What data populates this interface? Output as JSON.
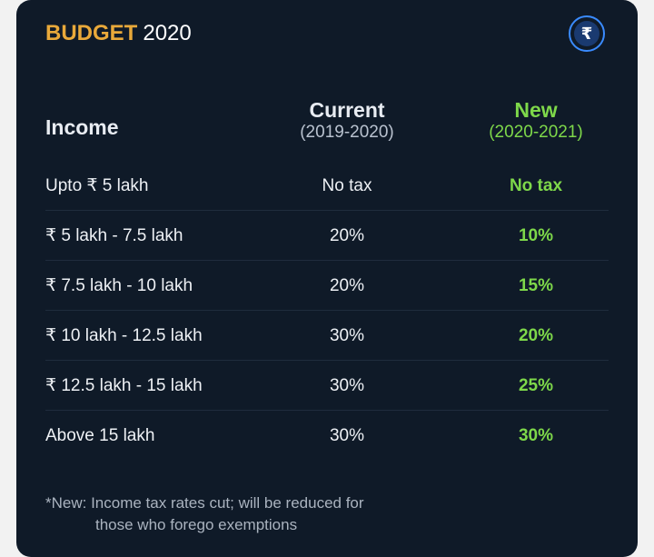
{
  "card": {
    "title_accent": "BUDGET",
    "title_year": "2020",
    "icon": "rupee-icon",
    "icon_glyph": "₹"
  },
  "table": {
    "headers": {
      "income": "Income",
      "current_title": "Current",
      "current_sub": "(2019-2020)",
      "new_title": "New",
      "new_sub": "(2020-2021)"
    },
    "rows": [
      {
        "income": "Upto ₹ 5 lakh",
        "current": "No tax",
        "new": "No tax"
      },
      {
        "income": "₹ 5 lakh - 7.5 lakh",
        "current": "20%",
        "new": "10%"
      },
      {
        "income": "₹ 7.5 lakh - 10 lakh",
        "current": "20%",
        "new": "15%"
      },
      {
        "income": "₹ 10 lakh - 12.5 lakh",
        "current": "30%",
        "new": "20%"
      },
      {
        "income": "₹ 12.5 lakh - 15 lakh",
        "current": "30%",
        "new": "25%"
      },
      {
        "income": "Above 15 lakh",
        "current": "30%",
        "new": "30%"
      }
    ]
  },
  "footnote": {
    "line1": "*New: Income tax rates cut; will be reduced for",
    "line2": "those who forego exemptions"
  },
  "colors": {
    "background": "#0f1a28",
    "accent_orange": "#e9a93a",
    "new_green": "#7ed84a",
    "icon_blue": "#3a8bff"
  }
}
